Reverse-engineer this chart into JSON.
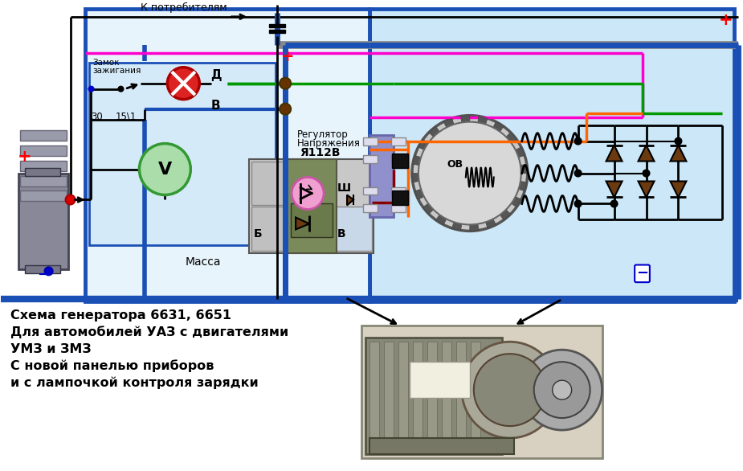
{
  "bg_color": "#ffffff",
  "diagram_bg": "#cce8f8",
  "title_lines": [
    "Схема генератора 6631, 6651",
    "Для автомобилей УАЗ с двигателями",
    "УМЗ и ЗМЗ",
    "С новой панелью приборов",
    "и с лампочкой контроля зарядки"
  ],
  "blue_wire": "#1a4fb5",
  "pink_wire": "#ff00cc",
  "green_wire": "#009900",
  "orange_wire": "#ff6600",
  "dark_red_wire": "#880000",
  "gray_bus": "#888888",
  "diode_color": "#6b3a10"
}
